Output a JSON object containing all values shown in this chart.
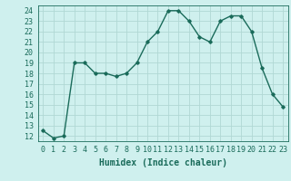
{
  "x": [
    0,
    1,
    2,
    3,
    4,
    5,
    6,
    7,
    8,
    9,
    10,
    11,
    12,
    13,
    14,
    15,
    16,
    17,
    18,
    19,
    20,
    21,
    22,
    23
  ],
  "y": [
    12.5,
    11.8,
    12.0,
    19.0,
    19.0,
    18.0,
    18.0,
    17.7,
    18.0,
    19.0,
    21.0,
    22.0,
    24.0,
    24.0,
    23.0,
    21.5,
    21.0,
    23.0,
    23.5,
    23.5,
    22.0,
    18.5,
    16.0,
    14.8
  ],
  "line_color": "#1a6b5a",
  "marker": "D",
  "marker_size": 1.8,
  "bg_color": "#cff0ee",
  "grid_color": "#b0d8d4",
  "xlabel": "Humidex (Indice chaleur)",
  "xlim": [
    -0.5,
    23.5
  ],
  "ylim": [
    11.5,
    24.5
  ],
  "yticks": [
    12,
    13,
    14,
    15,
    16,
    17,
    18,
    19,
    20,
    21,
    22,
    23,
    24
  ],
  "xticks": [
    0,
    1,
    2,
    3,
    4,
    5,
    6,
    7,
    8,
    9,
    10,
    11,
    12,
    13,
    14,
    15,
    16,
    17,
    18,
    19,
    20,
    21,
    22,
    23
  ],
  "xlabel_fontsize": 7,
  "tick_fontsize": 6,
  "linewidth": 1.0
}
